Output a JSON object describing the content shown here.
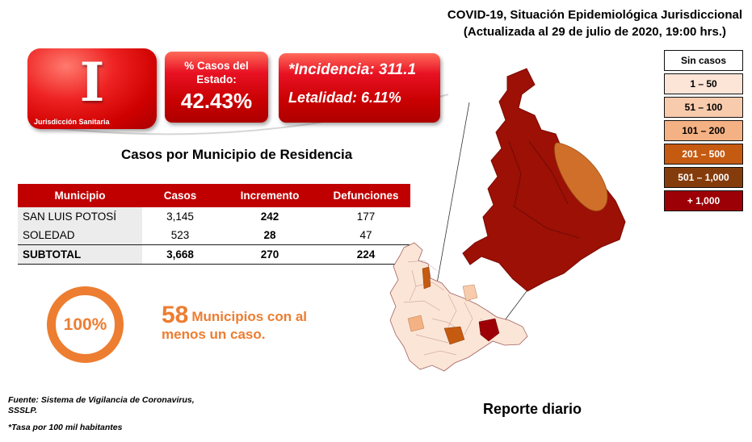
{
  "header": {
    "line1": "COVID-19, Situación Epidemiológica Jurisdiccional",
    "line2": "(Actualizada al 29 de julio de 2020, 19:00 hrs.)"
  },
  "badge": {
    "numeral": "I",
    "label": "Jurisdicción Sanitaria"
  },
  "stats": {
    "pct_label": "% Casos del Estado:",
    "pct_value": "42.43%",
    "incidencia": "*Incidencia: 311.1",
    "letalidad": "Letalidad: 6.11%"
  },
  "section": {
    "title": "Casos por Municipio  de Residencia"
  },
  "table": {
    "headers": [
      "Municipio",
      "Casos",
      "Incremento",
      "Defunciones"
    ],
    "rows": [
      {
        "municipio": "SAN LUIS POTOSÍ",
        "casos": "3,145",
        "incremento": "242",
        "defunciones": "177",
        "subtotal": false
      },
      {
        "municipio": "SOLEDAD",
        "casos": "523",
        "incremento": "28",
        "defunciones": "47",
        "subtotal": false
      },
      {
        "municipio": "SUBTOTAL",
        "casos": "3,668",
        "incremento": "270",
        "defunciones": "224",
        "subtotal": true
      }
    ]
  },
  "coverage": {
    "percent": "100%",
    "count": "58",
    "text": "Municipios con al menos un caso.",
    "accent_color": "#ED7D31"
  },
  "legend": {
    "items": [
      {
        "label": "Sin casos",
        "color": "#ffffff",
        "text_color": "#000000"
      },
      {
        "label": "1 – 50",
        "color": "#fce4d6",
        "text_color": "#000000"
      },
      {
        "label": "51 – 100",
        "color": "#f8cbad",
        "text_color": "#000000"
      },
      {
        "label": "101 – 200",
        "color": "#f4b183",
        "text_color": "#000000"
      },
      {
        "label": "201 – 500",
        "color": "#c55a11",
        "text_color": "#ffffff"
      },
      {
        "label": "501 – 1,000",
        "color": "#843c0c",
        "text_color": "#ffffff"
      },
      {
        "label": "+ 1,000",
        "color": "#9c0006",
        "text_color": "#ffffff"
      }
    ]
  },
  "footer": {
    "source1": "Fuente: Sistema de Vigilancia  de Coronavirus,",
    "source2": "SSSLP.",
    "note": "*Tasa por 100 mil habitantes",
    "report_label": "Reporte diario"
  }
}
